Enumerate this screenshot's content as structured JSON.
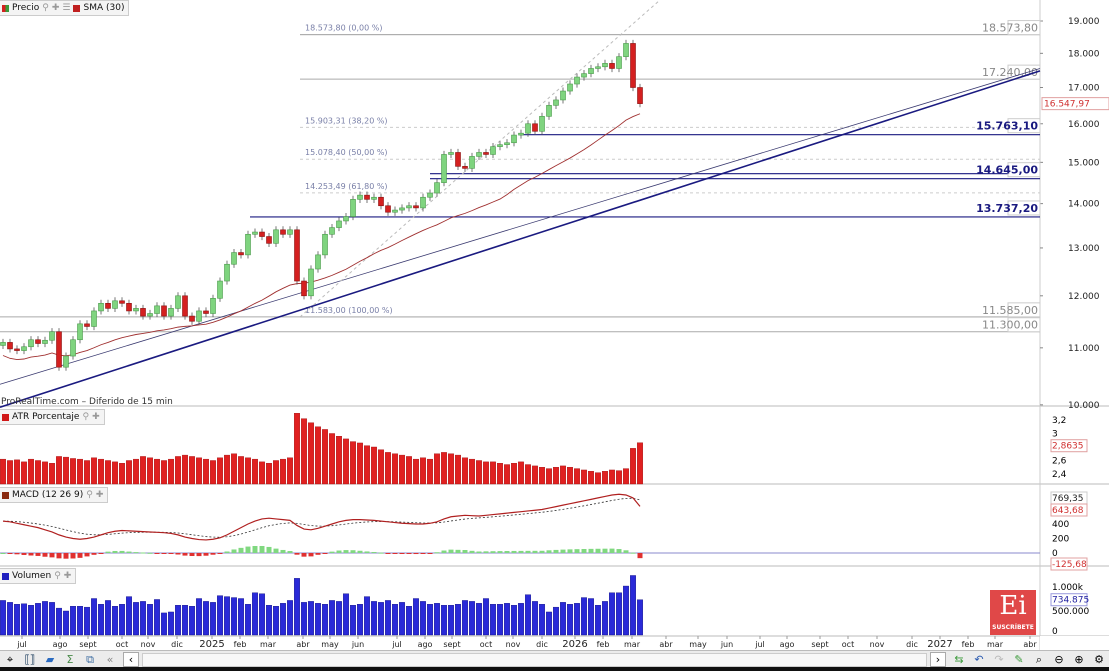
{
  "legends": {
    "price": {
      "label": "Precio",
      "color": "#3a9a3a"
    },
    "sma": {
      "label": "SMA (30)",
      "color": "#c02020"
    },
    "atr": {
      "label": "ATR Porcentaje",
      "color": "#d01818"
    },
    "macd": {
      "label": "MACD (12 26 9)",
      "color": "#8a2a10"
    },
    "volume": {
      "label": "Volumen",
      "color": "#2020c0"
    }
  },
  "watermark": "ProRealTime.com – Diferido de 15 min",
  "logo": {
    "text": "Ei",
    "sub": "SUSCRÍBETE"
  },
  "chart_data": {
    "type": "candlestick",
    "price_axis": {
      "scale": "log",
      "range": [
        10000,
        19000
      ],
      "ticks": [
        "19.000",
        "18.000",
        "17.000",
        "16.000",
        "15.000",
        "14.000",
        "13.000",
        "12.000",
        "11.000",
        "10.000"
      ],
      "tick_values": [
        19000,
        18000,
        17000,
        16000,
        15000,
        14000,
        13000,
        12000,
        11000,
        10000
      ]
    },
    "last_price": {
      "value": 16547.97,
      "label": "16.547,97"
    },
    "x_labels": [
      "jul",
      "ago",
      "sept",
      "oct",
      "nov",
      "dic",
      "2025",
      "feb",
      "mar",
      "abr",
      "may",
      "jun",
      "jul",
      "ago",
      "sept",
      "oct",
      "nov",
      "dic",
      "2026",
      "feb",
      "mar",
      "abr",
      "may",
      "jun",
      "jul",
      "ago",
      "sept",
      "oct",
      "nov",
      "dic",
      "2027",
      "feb",
      "mar",
      "abr"
    ],
    "close": [
      11100,
      10980,
      10950,
      11020,
      11150,
      11080,
      11140,
      11300,
      10650,
      10850,
      11150,
      11450,
      11400,
      11700,
      11850,
      11750,
      11900,
      11850,
      11700,
      11750,
      11600,
      11650,
      11800,
      11600,
      11750,
      12000,
      11600,
      11500,
      11700,
      11650,
      11950,
      12300,
      12650,
      12900,
      12850,
      13300,
      13350,
      13250,
      13100,
      13400,
      13300,
      13400,
      12300,
      12000,
      12550,
      12850,
      13300,
      13450,
      13600,
      13700,
      14100,
      14200,
      14100,
      14150,
      13950,
      13800,
      13850,
      13900,
      13950,
      13900,
      14150,
      14250,
      14500,
      15200,
      15250,
      14900,
      14850,
      15150,
      15250,
      15200,
      15400,
      15450,
      15500,
      15700,
      15750,
      16000,
      15800,
      16200,
      16500,
      16650,
      16900,
      17100,
      17300,
      17400,
      17550,
      17600,
      17700,
      17550,
      17900,
      18300,
      17000,
      16547.97
    ],
    "fibonacci": [
      {
        "price": 18573.8,
        "label": "18.573,80 (0,00 %)"
      },
      {
        "price": 15903.31,
        "label": "15.903,31 (38,20 %)"
      },
      {
        "price": 15078.4,
        "label": "15.078,40 (50,00 %)"
      },
      {
        "price": 14253.49,
        "label": "14.253,49 (61,80 %)"
      },
      {
        "price": 11583.0,
        "label": "11.583,00 (100,00 %)"
      }
    ],
    "levels": [
      {
        "price": 18573.8,
        "label": "18.573,80",
        "color": "#888888"
      },
      {
        "price": 17240.0,
        "label": "17.240,00",
        "color": "#888888"
      },
      {
        "price": 15763.1,
        "label": "15.763,10",
        "color": "#1a1a80"
      },
      {
        "price": 14645.0,
        "label": "14.645,00",
        "color": "#1a1a80"
      },
      {
        "price": 13737.2,
        "label": "13.737,20",
        "color": "#1a1a80"
      },
      {
        "price": 11585.0,
        "label": "11.585,00",
        "color": "#888888"
      },
      {
        "price": 11300.0,
        "label": "11.300,00",
        "color": "#888888"
      }
    ],
    "atr": {
      "ticks": [
        "3,2",
        "3",
        "2,6",
        "2,4"
      ],
      "tick_values": [
        3.2,
        3.0,
        2.6,
        2.4
      ],
      "last_label": "2,8635",
      "values": [
        2.62,
        2.6,
        2.61,
        2.58,
        2.62,
        2.6,
        2.58,
        2.56,
        2.66,
        2.65,
        2.63,
        2.62,
        2.6,
        2.64,
        2.62,
        2.6,
        2.58,
        2.56,
        2.6,
        2.62,
        2.66,
        2.64,
        2.62,
        2.6,
        2.62,
        2.66,
        2.68,
        2.66,
        2.64,
        2.62,
        2.6,
        2.64,
        2.68,
        2.7,
        2.66,
        2.64,
        2.62,
        2.58,
        2.56,
        2.6,
        2.62,
        2.64,
        3.3,
        3.22,
        3.16,
        3.1,
        3.06,
        3.0,
        2.96,
        2.92,
        2.88,
        2.86,
        2.82,
        2.8,
        2.76,
        2.72,
        2.7,
        2.68,
        2.66,
        2.62,
        2.64,
        2.62,
        2.7,
        2.72,
        2.7,
        2.68,
        2.64,
        2.62,
        2.6,
        2.58,
        2.58,
        2.56,
        2.54,
        2.56,
        2.58,
        2.54,
        2.52,
        2.5,
        2.48,
        2.5,
        2.52,
        2.5,
        2.48,
        2.46,
        2.44,
        2.42,
        2.44,
        2.46,
        2.45,
        2.48,
        2.78,
        2.8635
      ]
    },
    "macd": {
      "ticks": [
        "400",
        "200",
        "0"
      ],
      "tick_values": [
        400,
        200,
        0
      ],
      "signal_label": "769,35",
      "macd_label": "643,68",
      "hist_label": "-125,68",
      "values": [
        440,
        430,
        410,
        390,
        370,
        350,
        320,
        290,
        250,
        220,
        200,
        190,
        200,
        220,
        250,
        280,
        300,
        310,
        305,
        300,
        295,
        290,
        285,
        280,
        270,
        250,
        220,
        200,
        185,
        180,
        190,
        210,
        250,
        300,
        350,
        400,
        440,
        470,
        480,
        470,
        460,
        450,
        380,
        330,
        320,
        340,
        370,
        400,
        430,
        450,
        460,
        460,
        455,
        450,
        440,
        430,
        420,
        410,
        405,
        400,
        400,
        410,
        430,
        470,
        500,
        510,
        520,
        515,
        510,
        520,
        530,
        540,
        550,
        560,
        570,
        580,
        590,
        600,
        620,
        640,
        660,
        680,
        700,
        720,
        740,
        760,
        780,
        800,
        810,
        800,
        760,
        643.68
      ]
    },
    "volume": {
      "unit": "k",
      "ticks": [
        "1.000k",
        "500.000",
        "0"
      ],
      "tick_values": [
        1000,
        500,
        0
      ],
      "last_label": "734.875",
      "values": [
        720,
        680,
        640,
        650,
        620,
        660,
        700,
        680,
        560,
        500,
        600,
        600,
        580,
        760,
        640,
        720,
        600,
        640,
        800,
        680,
        700,
        640,
        740,
        460,
        480,
        620,
        620,
        600,
        760,
        700,
        680,
        820,
        800,
        780,
        760,
        640,
        880,
        860,
        620,
        600,
        660,
        720,
        1180,
        680,
        700,
        660,
        640,
        720,
        700,
        860,
        620,
        640,
        800,
        700,
        680,
        720,
        640,
        680,
        600,
        760,
        700,
        640,
        660,
        620,
        620,
        640,
        720,
        700,
        660,
        760,
        640,
        640,
        660,
        620,
        660,
        840,
        700,
        640,
        480,
        580,
        680,
        640,
        660,
        780,
        760,
        620,
        700,
        880,
        880,
        1020,
        1240,
        734.875
      ]
    },
    "colors": {
      "up": "#7fd47f",
      "down": "#d42020",
      "sma": "#a03030",
      "trend": "#1a1a80",
      "grid": "#cccccc"
    }
  }
}
